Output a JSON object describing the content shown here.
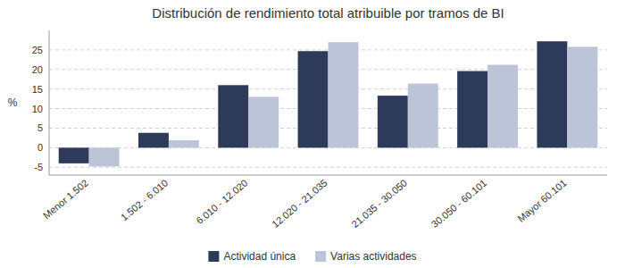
{
  "chart_data": {
    "type": "bar",
    "title": "Distribución de rendimiento total atribuible por tramos de BI",
    "categories": [
      "Menor 1.502",
      "1.502 - 6.010",
      "6.010 - 12.020",
      "12.020 - 21.035",
      "21.035 - 30.050",
      "30.050 - 60.101",
      "Mayor 60.101"
    ],
    "series": [
      {
        "name": "Actividad única",
        "color": "#2E3A59",
        "values": [
          -4.0,
          3.8,
          16.0,
          24.7,
          13.3,
          19.6,
          27.2
        ]
      },
      {
        "name": "Varias actividades",
        "color": "#BCC4D8",
        "values": [
          -4.8,
          1.9,
          13.0,
          27.0,
          16.4,
          21.2,
          25.8
        ]
      }
    ],
    "ylabel": "%",
    "ylim": [
      -7,
      30
    ],
    "yticks": [
      -5,
      0,
      5,
      10,
      15,
      20,
      25
    ],
    "grid": true,
    "legend": "bottom"
  }
}
